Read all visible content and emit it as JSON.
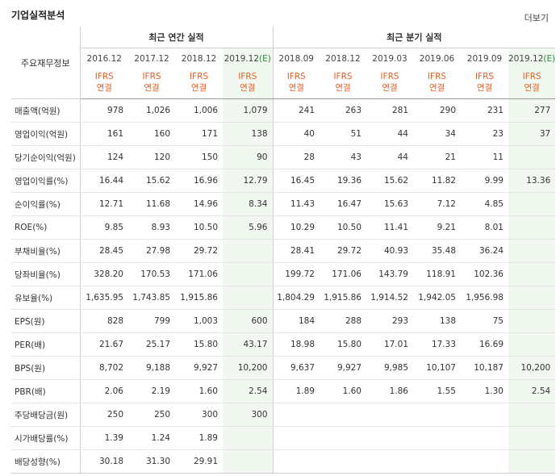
{
  "header": {
    "title": "기업실적분석",
    "more": "더보기"
  },
  "table": {
    "label_header": "주요재무정보",
    "group_annual": "최근 연간 실적",
    "group_quarter": "최근 분기 실적",
    "periods": [
      {
        "main": "2016.12",
        "est": ""
      },
      {
        "main": "2017.12",
        "est": ""
      },
      {
        "main": "2018.12",
        "est": ""
      },
      {
        "main": "2019.12",
        "est": "(E)"
      },
      {
        "main": "2018.09",
        "est": ""
      },
      {
        "main": "2018.12",
        "est": ""
      },
      {
        "main": "2019.03",
        "est": ""
      },
      {
        "main": "2019.06",
        "est": ""
      },
      {
        "main": "2019.09",
        "est": ""
      },
      {
        "main": "2019.12",
        "est": "(E)"
      }
    ],
    "ifrs_line1": "IFRS",
    "ifrs_line2": "연결",
    "rows": [
      {
        "label": "매출액(억원)",
        "values": [
          "978",
          "1,026",
          "1,006",
          "1,079",
          "241",
          "263",
          "281",
          "290",
          "231",
          "277"
        ]
      },
      {
        "label": "영업이익(억원)",
        "values": [
          "161",
          "160",
          "171",
          "138",
          "40",
          "51",
          "44",
          "34",
          "23",
          "37"
        ]
      },
      {
        "label": "당기순이익(억원)",
        "values": [
          "124",
          "120",
          "150",
          "90",
          "28",
          "43",
          "44",
          "21",
          "11",
          ""
        ]
      },
      {
        "label": "영업이익률(%)",
        "values": [
          "16.44",
          "15.62",
          "16.96",
          "12.79",
          "16.45",
          "19.36",
          "15.62",
          "11.82",
          "9.99",
          "13.36"
        ]
      },
      {
        "label": "순이익률(%)",
        "values": [
          "12.71",
          "11.68",
          "14.96",
          "8.34",
          "11.43",
          "16.47",
          "15.63",
          "7.12",
          "4.85",
          ""
        ]
      },
      {
        "label": "ROE(%)",
        "values": [
          "9.85",
          "8.93",
          "10.50",
          "5.96",
          "10.29",
          "10.50",
          "11.41",
          "9.21",
          "8.01",
          ""
        ]
      },
      {
        "label": "부채비율(%)",
        "values": [
          "28.45",
          "27.98",
          "29.72",
          "",
          "28.41",
          "29.72",
          "40.93",
          "35.48",
          "36.24",
          ""
        ]
      },
      {
        "label": "당좌비율(%)",
        "values": [
          "328.20",
          "170.53",
          "171.06",
          "",
          "199.72",
          "171.06",
          "143.79",
          "118.91",
          "102.36",
          ""
        ]
      },
      {
        "label": "유보율(%)",
        "values": [
          "1,635.95",
          "1,743.85",
          "1,915.86",
          "",
          "1,804.29",
          "1,915.86",
          "1,914.52",
          "1,942.05",
          "1,956.98",
          ""
        ]
      },
      {
        "label": "EPS(원)",
        "values": [
          "828",
          "799",
          "1,003",
          "600",
          "184",
          "288",
          "293",
          "138",
          "75",
          ""
        ]
      },
      {
        "label": "PER(배)",
        "values": [
          "21.67",
          "25.17",
          "15.80",
          "43.17",
          "18.98",
          "15.80",
          "17.01",
          "17.33",
          "16.69",
          ""
        ]
      },
      {
        "label": "BPS(원)",
        "values": [
          "8,702",
          "9,188",
          "9,927",
          "10,200",
          "9,637",
          "9,927",
          "9,985",
          "10,107",
          "10,187",
          "10,200"
        ]
      },
      {
        "label": "PBR(배)",
        "values": [
          "2.06",
          "2.19",
          "1.60",
          "2.54",
          "1.89",
          "1.60",
          "1.86",
          "1.55",
          "1.30",
          "2.54"
        ]
      },
      {
        "label": "주당배당금(원)",
        "values": [
          "250",
          "250",
          "300",
          "300",
          "",
          "",
          "",
          "",
          "",
          ""
        ]
      },
      {
        "label": "시가배당률(%)",
        "values": [
          "1.39",
          "1.24",
          "1.89",
          "",
          "",
          "",
          "",
          "",
          "",
          ""
        ]
      },
      {
        "label": "배당성향(%)",
        "values": [
          "30.18",
          "31.30",
          "29.91",
          "",
          "",
          "",
          "",
          "",
          "",
          ""
        ]
      }
    ]
  }
}
